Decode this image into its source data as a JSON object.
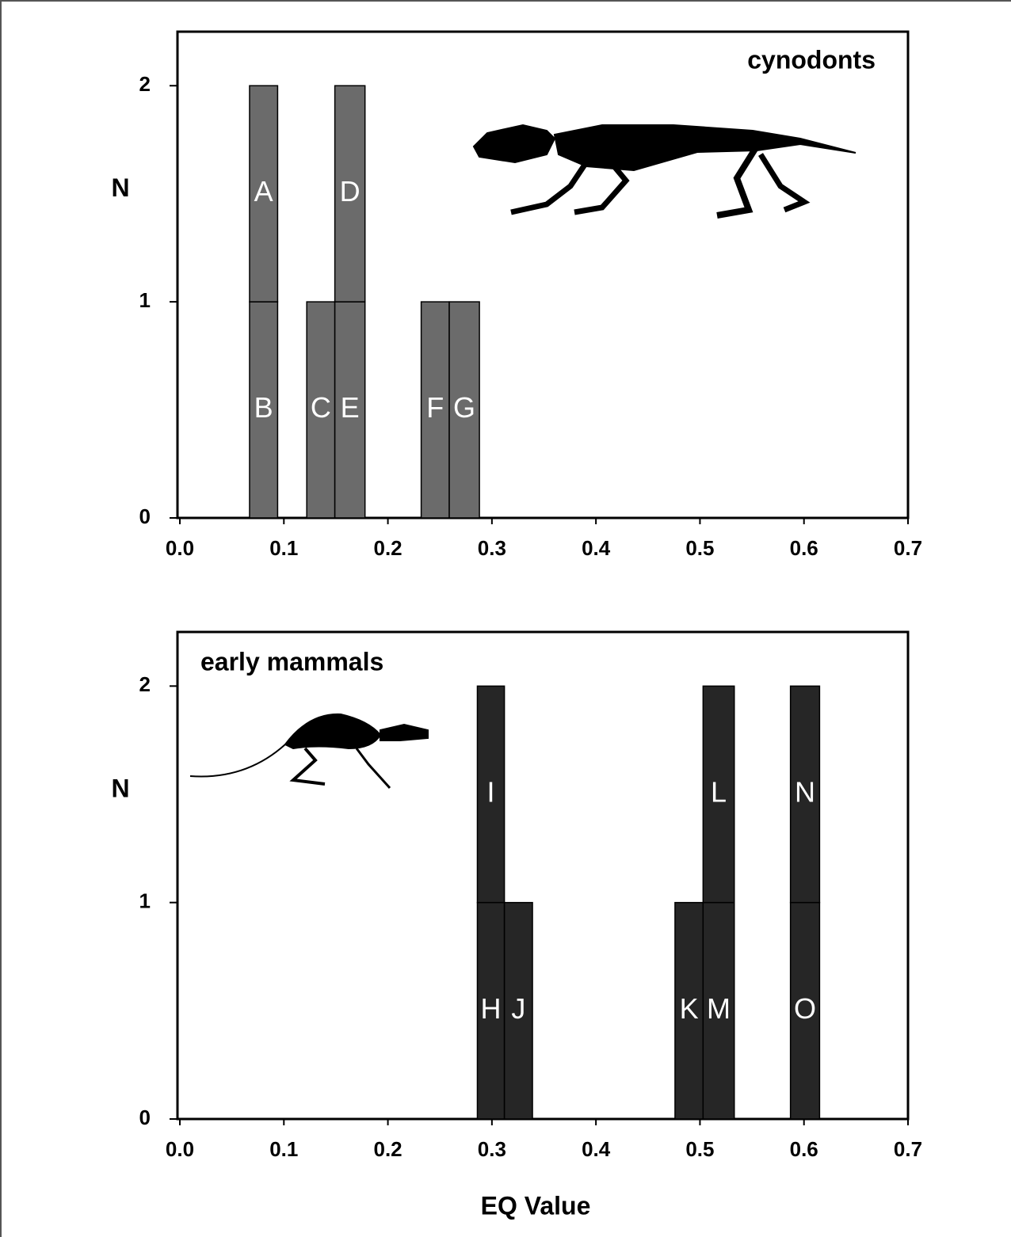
{
  "chart_data": [
    {
      "type": "stacked-block-histogram",
      "title": "cynodonts",
      "ylabel": "N",
      "color": "#6b6b6b",
      "xlim": [
        0,
        0.7
      ],
      "ylim": [
        0,
        2.25
      ],
      "xticks": [
        {
          "value": 0,
          "label": "0.0"
        },
        0.1,
        0.2,
        0.3,
        0.4,
        0.5,
        0.6,
        0.7
      ],
      "yticks": [
        0,
        1,
        2
      ],
      "bars": [
        {
          "x": [
            0.067,
            0.094
          ],
          "segments": [
            {
              "label": "B",
              "value": 1
            },
            {
              "label": "A",
              "value": 1
            }
          ]
        },
        {
          "x": [
            0.122,
            0.149
          ],
          "segments": [
            {
              "label": "C",
              "value": 1
            }
          ]
        },
        {
          "x": [
            0.149,
            0.178
          ],
          "segments": [
            {
              "label": "E",
              "value": 1
            },
            {
              "label": "D",
              "value": 1
            }
          ]
        },
        {
          "x": [
            0.232,
            0.259
          ],
          "segments": [
            {
              "label": "F",
              "value": 1
            }
          ]
        },
        {
          "x": [
            0.259,
            0.288
          ],
          "segments": [
            {
              "label": "G",
              "value": 1
            }
          ]
        }
      ]
    },
    {
      "type": "stacked-block-histogram",
      "title": "early mammals",
      "ylabel": "N",
      "xlabel": "EQ Value",
      "color": "#262626",
      "xlim": [
        0,
        0.7
      ],
      "ylim": [
        0,
        2.25
      ],
      "xticks": [
        {
          "value": 0,
          "label": "0.0"
        },
        0.1,
        0.2,
        0.3,
        0.4,
        0.5,
        0.6,
        0.7
      ],
      "yticks": [
        0,
        1,
        2
      ],
      "bars": [
        {
          "x": [
            0.286,
            0.312
          ],
          "segments": [
            {
              "label": "H",
              "value": 1
            },
            {
              "label": "I",
              "value": 1
            }
          ]
        },
        {
          "x": [
            0.312,
            0.339
          ],
          "segments": [
            {
              "label": "J",
              "value": 1
            }
          ]
        },
        {
          "x": [
            0.476,
            0.503
          ],
          "segments": [
            {
              "label": "K",
              "value": 1
            }
          ]
        },
        {
          "x": [
            0.503,
            0.533
          ],
          "segments": [
            {
              "label": "M",
              "value": 1
            },
            {
              "label": "L",
              "value": 1
            }
          ]
        },
        {
          "x": [
            0.587,
            0.615
          ],
          "segments": [
            {
              "label": "O",
              "value": 1
            },
            {
              "label": "N",
              "value": 1
            }
          ]
        }
      ]
    }
  ]
}
